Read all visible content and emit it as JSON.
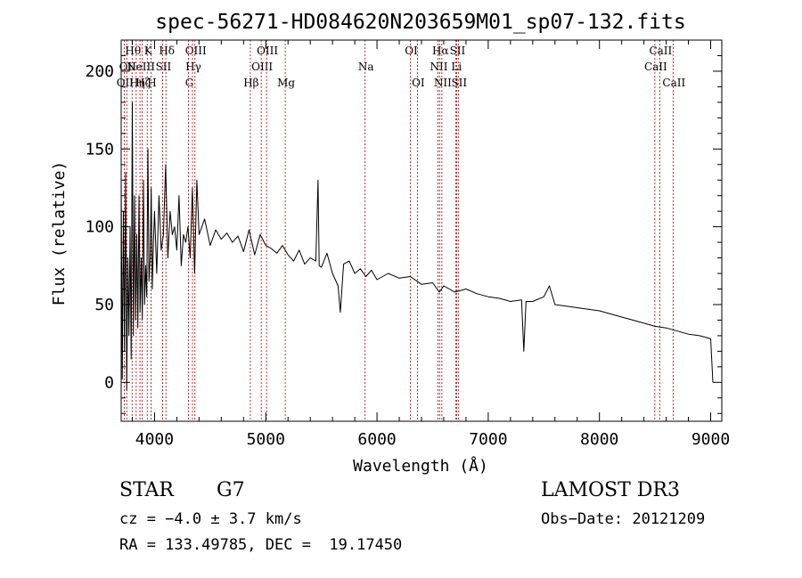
{
  "chart_data": {
    "type": "line",
    "title": "spec-56271-HD084620N203659M01_sp07-132.fits",
    "xlabel": "Wavelength (Å)",
    "ylabel": "Flux (relative)",
    "xlim": [
      3700,
      9100
    ],
    "ylim": [
      -25,
      220
    ],
    "xticks": [
      4000,
      5000,
      6000,
      7000,
      8000,
      9000
    ],
    "yticks": [
      0,
      50,
      100,
      150,
      200
    ],
    "x_minor_step": 200,
    "y_minor_step": 10,
    "grid": false,
    "line_color": "#000000",
    "marker_color": "#b00000",
    "series": [
      {
        "name": "flux",
        "x": [
          3700,
          3710,
          3720,
          3730,
          3740,
          3750,
          3760,
          3770,
          3780,
          3790,
          3800,
          3810,
          3820,
          3830,
          3840,
          3850,
          3860,
          3870,
          3880,
          3890,
          3900,
          3910,
          3920,
          3930,
          3940,
          3950,
          3960,
          3970,
          3980,
          3990,
          4000,
          4020,
          4040,
          4060,
          4080,
          4100,
          4120,
          4140,
          4160,
          4180,
          4200,
          4220,
          4240,
          4260,
          4280,
          4300,
          4320,
          4340,
          4360,
          4380,
          4400,
          4450,
          4500,
          4550,
          4600,
          4650,
          4700,
          4750,
          4800,
          4850,
          4900,
          4950,
          5000,
          5050,
          5100,
          5150,
          5200,
          5250,
          5300,
          5350,
          5400,
          5450,
          5470,
          5480,
          5500,
          5550,
          5600,
          5650,
          5670,
          5700,
          5750,
          5800,
          5850,
          5900,
          5950,
          6000,
          6100,
          6200,
          6300,
          6400,
          6500,
          6560,
          6600,
          6700,
          6800,
          6900,
          7000,
          7100,
          7200,
          7300,
          7320,
          7340,
          7400,
          7500,
          7550,
          7600,
          7700,
          7800,
          7900,
          8000,
          8100,
          8200,
          8300,
          8400,
          8500,
          8600,
          8700,
          8800,
          8900,
          9000,
          9020
        ],
        "values": [
          130,
          2,
          110,
          20,
          135,
          -5,
          80,
          30,
          100,
          15,
          180,
          30,
          120,
          40,
          95,
          35,
          120,
          45,
          80,
          40,
          130,
          50,
          75,
          55,
          150,
          65,
          80,
          125,
          60,
          90,
          110,
          70,
          120,
          85,
          95,
          140,
          80,
          110,
          95,
          100,
          85,
          120,
          75,
          95,
          90,
          100,
          80,
          125,
          70,
          130,
          95,
          105,
          88,
          98,
          92,
          96,
          90,
          94,
          84,
          98,
          82,
          95,
          88,
          86,
          83,
          88,
          82,
          78,
          85,
          76,
          80,
          78,
          130,
          75,
          74,
          83,
          70,
          62,
          45,
          76,
          78,
          70,
          73,
          68,
          72,
          66,
          70,
          67,
          68,
          63,
          64,
          58,
          62,
          58,
          60,
          57,
          55,
          54,
          52,
          53,
          20,
          52,
          52,
          55,
          62,
          50,
          49,
          48,
          47,
          46,
          44,
          42,
          40,
          38,
          36,
          35,
          33,
          31,
          30,
          28,
          0
        ]
      }
    ],
    "line_markers": [
      {
        "x": 3727,
        "label": "OII",
        "row": 2
      },
      {
        "x": 3750,
        "label": "OII",
        "row": 1
      },
      {
        "x": 3798,
        "label": "Hθ",
        "row": 0
      },
      {
        "x": 3835,
        "label": "Hη",
        "row": 2
      },
      {
        "x": 3869,
        "label": "NeIII",
        "row": 1
      },
      {
        "x": 3889,
        "label": "Hζ",
        "row": 2
      },
      {
        "x": 3934,
        "label": "K",
        "row": 0
      },
      {
        "x": 3968,
        "label": "H",
        "row": 2
      },
      {
        "x": 4072,
        "label": "SII",
        "row": 1
      },
      {
        "x": 4102,
        "label": "Hδ",
        "row": 0
      },
      {
        "x": 4305,
        "label": "G",
        "row": 2
      },
      {
        "x": 4341,
        "label": "Hγ",
        "row": 1
      },
      {
        "x": 4363,
        "label": "OIII",
        "row": 0
      },
      {
        "x": 4861,
        "label": "Hβ",
        "row": 2
      },
      {
        "x": 4959,
        "label": "OIII",
        "row": 1
      },
      {
        "x": 5007,
        "label": "OIII",
        "row": 0
      },
      {
        "x": 5175,
        "label": "Mg",
        "row": 2
      },
      {
        "x": 5893,
        "label": "Na",
        "row": 1
      },
      {
        "x": 6300,
        "label": "OI",
        "row": 0
      },
      {
        "x": 6363,
        "label": "OI",
        "row": 2
      },
      {
        "x": 6548,
        "label": "NII",
        "row": 1
      },
      {
        "x": 6563,
        "label": "Hα",
        "row": 0
      },
      {
        "x": 6583,
        "label": "NII",
        "row": 2
      },
      {
        "x": 6707,
        "label": "Li",
        "row": 1
      },
      {
        "x": 6716,
        "label": "SII",
        "row": 0
      },
      {
        "x": 6731,
        "label": "SII",
        "row": 2
      },
      {
        "x": 8498,
        "label": "CaII",
        "row": 1
      },
      {
        "x": 8542,
        "label": "CaII",
        "row": 0
      },
      {
        "x": 8662,
        "label": "CaII",
        "row": 2
      }
    ]
  },
  "info": {
    "object_class": "STAR",
    "subclass": "G7",
    "survey": "LAMOST DR3",
    "redshift": "cz = −4.0 ± 3.7 km/s",
    "obs_date": "Obs−Date: 20121209",
    "coords": "RA = 133.49785, DEC =  19.17450"
  }
}
